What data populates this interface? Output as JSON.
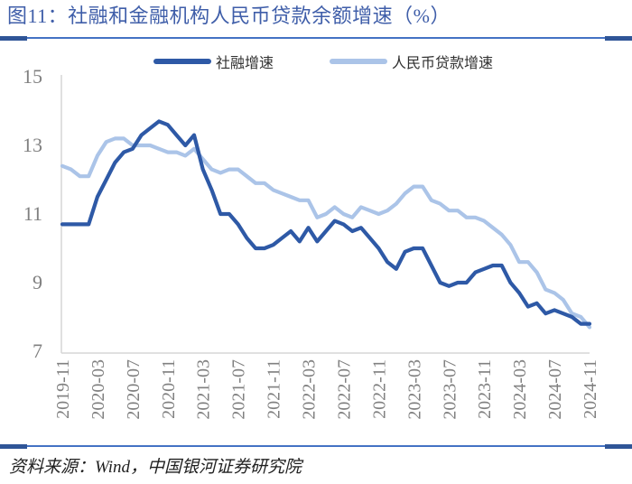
{
  "figure": {
    "title": "图11：社融和金融机构人民币贷款余额增速（%）",
    "source_note": "资料来源：Wind，中国银河证券研究院"
  },
  "colors": {
    "title": "#3F5EA9",
    "divider_line": "#4472C4",
    "divider_cap": "#2F5597",
    "series_dark": "#2E59A6",
    "series_light": "#ABC4E8",
    "axis_line": "#D6D6D6",
    "tick_text": "#808080"
  },
  "legend": {
    "items": [
      {
        "label": "社融增速"
      },
      {
        "label": "人民币贷款增速"
      }
    ]
  },
  "chart_data": {
    "type": "line",
    "title": "图11：社融和金融机构人民币贷款余额增速（%）",
    "xlabel": "",
    "ylabel": "",
    "ylim": [
      7,
      15
    ],
    "y_ticks": [
      7,
      9,
      11,
      13,
      15
    ],
    "grid": false,
    "legend_position": "top",
    "x_tick_every": 4,
    "x_tick_labels": [
      "2019-11",
      "2020-03",
      "2020-07",
      "2020-11",
      "2021-03",
      "2021-07",
      "2021-11",
      "2022-03",
      "2022-07",
      "2022-11",
      "2023-03",
      "2023-07",
      "2023-11",
      "2024-03",
      "2024-07",
      "2024-11"
    ],
    "x": [
      "2019-11",
      "2019-12",
      "2020-01",
      "2020-02",
      "2020-03",
      "2020-04",
      "2020-05",
      "2020-06",
      "2020-07",
      "2020-08",
      "2020-09",
      "2020-10",
      "2020-11",
      "2020-12",
      "2021-01",
      "2021-02",
      "2021-03",
      "2021-04",
      "2021-05",
      "2021-06",
      "2021-07",
      "2021-08",
      "2021-09",
      "2021-10",
      "2021-11",
      "2021-12",
      "2022-01",
      "2022-02",
      "2022-03",
      "2022-04",
      "2022-05",
      "2022-06",
      "2022-07",
      "2022-08",
      "2022-09",
      "2022-10",
      "2022-11",
      "2022-12",
      "2023-01",
      "2023-02",
      "2023-03",
      "2023-04",
      "2023-05",
      "2023-06",
      "2023-07",
      "2023-08",
      "2023-09",
      "2023-10",
      "2023-11",
      "2023-12",
      "2024-01",
      "2024-02",
      "2024-03",
      "2024-04",
      "2024-05",
      "2024-06",
      "2024-07",
      "2024-08",
      "2024-09",
      "2024-10",
      "2024-11"
    ],
    "series": [
      {
        "name": "社融增速",
        "color": "#2E59A6",
        "values": [
          10.7,
          10.7,
          10.7,
          10.7,
          11.5,
          12.0,
          12.5,
          12.8,
          12.9,
          13.3,
          13.5,
          13.7,
          13.6,
          13.3,
          13.0,
          13.3,
          12.3,
          11.7,
          11.0,
          11.0,
          10.7,
          10.3,
          10.0,
          10.0,
          10.1,
          10.3,
          10.5,
          10.2,
          10.6,
          10.2,
          10.5,
          10.8,
          10.7,
          10.5,
          10.6,
          10.3,
          10.0,
          9.6,
          9.4,
          9.9,
          10.0,
          10.0,
          9.5,
          9.0,
          8.9,
          9.0,
          9.0,
          9.3,
          9.4,
          9.5,
          9.5,
          9.0,
          8.7,
          8.3,
          8.4,
          8.1,
          8.2,
          8.1,
          8.0,
          7.8,
          7.8
        ]
      },
      {
        "name": "人民币贷款增速",
        "color": "#ABC4E8",
        "values": [
          12.4,
          12.3,
          12.1,
          12.1,
          12.7,
          13.1,
          13.2,
          13.2,
          13.0,
          13.0,
          13.0,
          12.9,
          12.8,
          12.8,
          12.7,
          12.9,
          12.6,
          12.3,
          12.2,
          12.3,
          12.3,
          12.1,
          11.9,
          11.9,
          11.7,
          11.6,
          11.5,
          11.4,
          11.4,
          10.9,
          11.0,
          11.2,
          11.0,
          10.9,
          11.2,
          11.1,
          11.0,
          11.1,
          11.3,
          11.6,
          11.8,
          11.8,
          11.4,
          11.3,
          11.1,
          11.1,
          10.9,
          10.9,
          10.8,
          10.6,
          10.4,
          10.1,
          9.6,
          9.6,
          9.3,
          8.8,
          8.7,
          8.5,
          8.1,
          8.0,
          7.7
        ]
      }
    ]
  }
}
